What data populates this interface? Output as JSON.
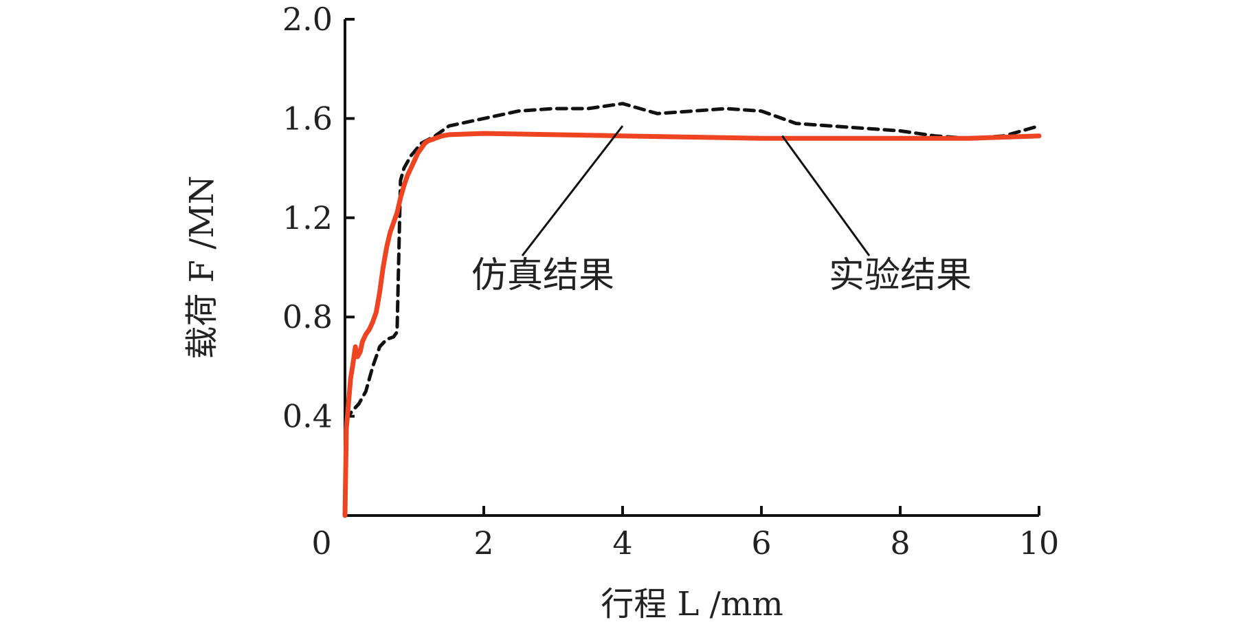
{
  "chart_data": {
    "type": "line",
    "xlabel": "行程 L /mm",
    "ylabel": "载荷 F /MN",
    "xlim": [
      0,
      10
    ],
    "ylim": [
      0,
      2.0
    ],
    "x_ticks": [
      "0",
      "2",
      "4",
      "6",
      "8",
      "10"
    ],
    "y_ticks": [
      "0.4",
      "0.8",
      "1.2",
      "1.6",
      "2.0"
    ],
    "grid": false,
    "legend": "none",
    "annotations": [
      {
        "text": "仿真结果",
        "series": "simulation",
        "point": [
          4.0,
          1.57
        ]
      },
      {
        "text": "实验结果",
        "series": "experiment",
        "point": [
          6.3,
          1.53
        ]
      }
    ],
    "series": [
      {
        "key": "simulation",
        "style": "dashed",
        "color": "#111111",
        "x": [
          0,
          0.02,
          0.05,
          0.1,
          0.2,
          0.3,
          0.4,
          0.5,
          0.6,
          0.7,
          0.75,
          0.8,
          0.85,
          0.95,
          1.1,
          1.3,
          1.5,
          2.0,
          2.5,
          3.0,
          3.5,
          4.0,
          4.5,
          5.0,
          5.5,
          6.0,
          6.5,
          7.0,
          7.5,
          8.0,
          8.5,
          9.0,
          9.5,
          10.0
        ],
        "y": [
          0,
          0.38,
          0.4,
          0.42,
          0.45,
          0.5,
          0.6,
          0.68,
          0.71,
          0.72,
          0.74,
          1.35,
          1.4,
          1.45,
          1.5,
          1.53,
          1.57,
          1.6,
          1.63,
          1.64,
          1.64,
          1.66,
          1.62,
          1.63,
          1.64,
          1.63,
          1.58,
          1.57,
          1.56,
          1.55,
          1.53,
          1.52,
          1.53,
          1.57
        ]
      },
      {
        "key": "experiment",
        "style": "solid",
        "color": "#ee4422",
        "x": [
          0,
          0.02,
          0.05,
          0.08,
          0.12,
          0.15,
          0.18,
          0.22,
          0.25,
          0.3,
          0.35,
          0.4,
          0.45,
          0.5,
          0.55,
          0.6,
          0.65,
          0.7,
          0.75,
          0.8,
          0.85,
          0.9,
          0.95,
          1.0,
          1.05,
          1.1,
          1.15,
          1.2,
          1.3,
          1.4,
          1.5,
          2.0,
          3.0,
          4.0,
          5.0,
          6.0,
          7.0,
          8.0,
          9.0,
          10.0
        ],
        "y": [
          0,
          0.35,
          0.45,
          0.55,
          0.62,
          0.68,
          0.64,
          0.66,
          0.7,
          0.73,
          0.75,
          0.78,
          0.82,
          0.9,
          1.0,
          1.08,
          1.14,
          1.18,
          1.22,
          1.28,
          1.33,
          1.37,
          1.4,
          1.43,
          1.46,
          1.48,
          1.5,
          1.51,
          1.52,
          1.53,
          1.535,
          1.54,
          1.535,
          1.53,
          1.525,
          1.52,
          1.52,
          1.52,
          1.52,
          1.53
        ]
      }
    ]
  }
}
